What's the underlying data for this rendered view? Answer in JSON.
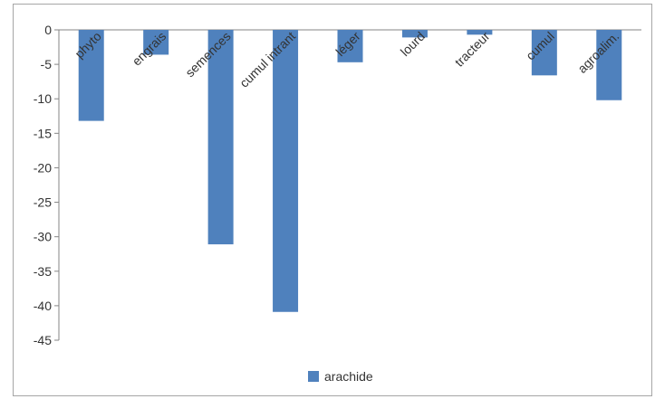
{
  "chart_data": {
    "type": "bar",
    "title": "",
    "xlabel": "",
    "ylabel": "",
    "categories": [
      "phyto",
      "engrais",
      "semences",
      "cumul intrant",
      "léger",
      "lourd",
      "tracteur",
      "cumul",
      "agroalim."
    ],
    "series": [
      {
        "name": "arachide",
        "color": "#4f81bd",
        "values": [
          -13.2,
          -3.6,
          -31.1,
          -40.9,
          -4.7,
          -1.1,
          -0.7,
          -6.6,
          -10.2
        ]
      }
    ],
    "ylim": [
      -45,
      0
    ],
    "yticks": [
      0,
      -5,
      -10,
      -15,
      -20,
      -25,
      -30,
      -35,
      -40,
      -45
    ],
    "ytick_labels": [
      "0",
      "-5",
      "-10",
      "-15",
      "-20",
      "-25",
      "-30",
      "-35",
      "-40",
      "-45"
    ],
    "grid": false,
    "legend": {
      "position": "bottom",
      "entries": [
        "arachide"
      ]
    }
  }
}
